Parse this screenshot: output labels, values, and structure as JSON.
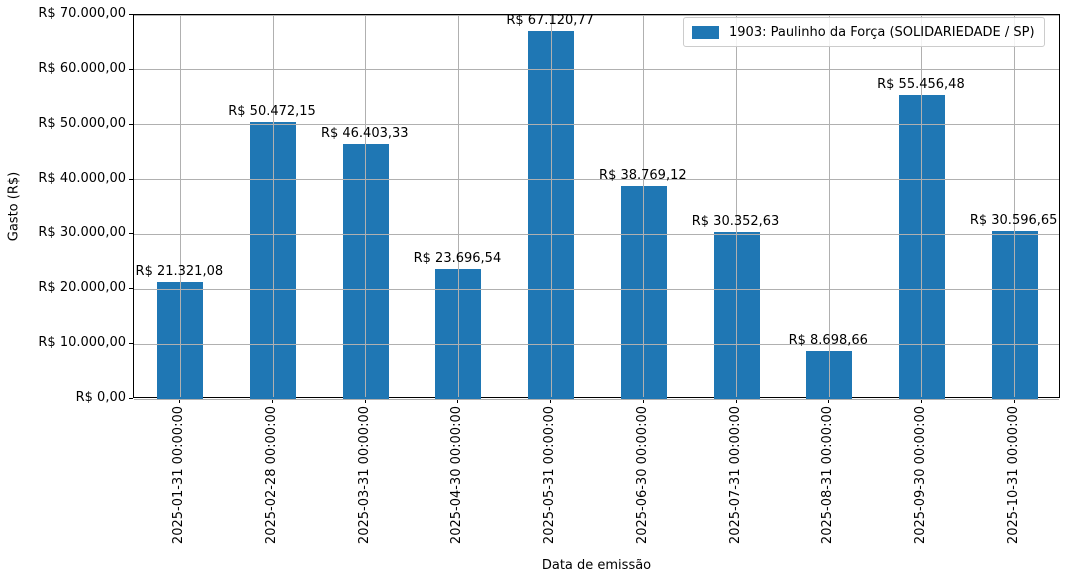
{
  "chart_data": {
    "type": "bar",
    "title": "",
    "xlabel": "Data de emissão",
    "ylabel": "Gasto (R$)",
    "categories": [
      "2025-01-31 00:00:00",
      "2025-02-28 00:00:00",
      "2025-03-31 00:00:00",
      "2025-04-30 00:00:00",
      "2025-05-31 00:00:00",
      "2025-06-30 00:00:00",
      "2025-07-31 00:00:00",
      "2025-08-31 00:00:00",
      "2025-09-30 00:00:00",
      "2025-10-31 00:00:00"
    ],
    "series": [
      {
        "name": "1903: Paulinho da Força (SOLIDARIEDADE / SP)",
        "values": [
          21321.08,
          50472.15,
          46403.33,
          23696.54,
          67120.77,
          38769.12,
          30352.63,
          8698.66,
          55456.48,
          30596.65
        ]
      }
    ],
    "bar_value_labels": [
      "R$ 21.321,08",
      "R$ 50.472,15",
      "R$ 46.403,33",
      "R$ 23.696,54",
      "R$ 67.120,77",
      "R$ 38.769,12",
      "R$ 30.352,63",
      "R$ 8.698,66",
      "R$ 55.456,48",
      "R$ 30.596,65"
    ],
    "y_ticks": [
      0,
      10000,
      20000,
      30000,
      40000,
      50000,
      60000,
      70000
    ],
    "y_tick_labels": [
      "R$ 0,00",
      "R$ 10.000,00",
      "R$ 20.000,00",
      "R$ 30.000,00",
      "R$ 40.000,00",
      "R$ 50.000,00",
      "R$ 60.000,00",
      "R$ 70.000,00"
    ],
    "ylim": [
      0,
      70000
    ],
    "grid": true,
    "legend_position": "upper right",
    "colors": {
      "bar": "#1f77b4",
      "grid": "#b0b0b0",
      "spine": "#000000",
      "legend_border": "#cccccc"
    }
  }
}
